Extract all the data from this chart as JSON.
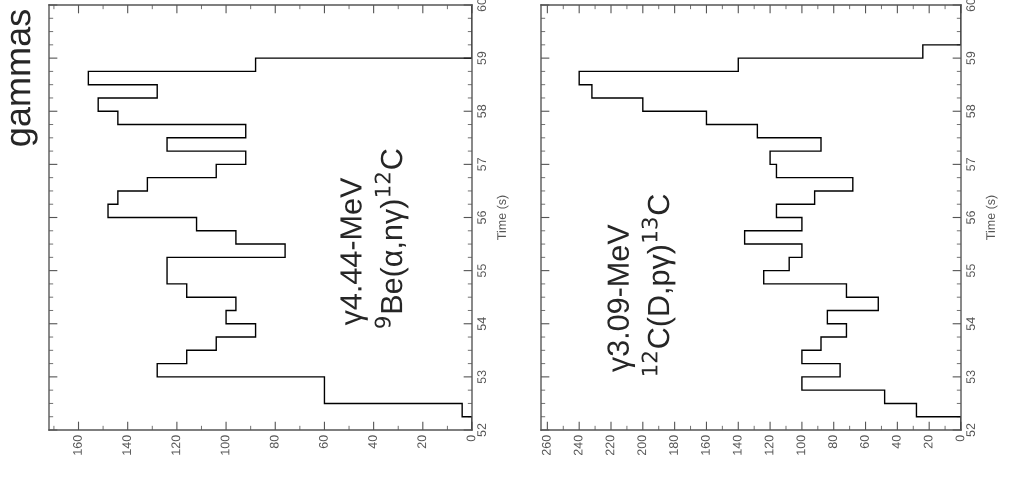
{
  "chart_data": [
    {
      "type": "histogram",
      "orientation": "horizontal",
      "title": "gammas",
      "ylabel": "Time (s)",
      "color": "#000000",
      "bins": [
        52,
        52.25,
        52.5,
        52.75,
        53,
        53.25,
        53.5,
        53.75,
        54,
        54.25,
        54.5,
        54.75,
        55,
        55.25,
        55.5,
        55.75,
        56,
        56.25,
        56.5,
        56.75,
        57,
        57.25,
        57.5,
        57.75,
        58,
        58.25,
        58.5,
        58.75,
        59,
        59.25,
        59.5,
        59.75,
        60
      ],
      "values": [
        0,
        4,
        60,
        60,
        128,
        116,
        104,
        88,
        100,
        96,
        116,
        124,
        124,
        76,
        96,
        112,
        148,
        144,
        132,
        104,
        92,
        124,
        92,
        144,
        152,
        128,
        156,
        88,
        0,
        0,
        0,
        0
      ],
      "xlim": [
        172,
        0
      ],
      "xticks": [
        0,
        20,
        40,
        60,
        80,
        100,
        120,
        140,
        160
      ],
      "ylim": [
        52,
        60
      ],
      "yticks": [
        52,
        53,
        54,
        55,
        56,
        57,
        58,
        59,
        60
      ],
      "annotations": [
        "γ4.44-MeV",
        "$^{9}$Be(α,nγ)$^{12}$C"
      ]
    },
    {
      "type": "histogram",
      "orientation": "horizontal",
      "ylabel": "Time (s)",
      "color": "#000000",
      "bins": [
        52,
        52.25,
        52.5,
        52.75,
        53,
        53.25,
        53.5,
        53.75,
        54,
        54.25,
        54.5,
        54.75,
        55,
        55.25,
        55.5,
        55.75,
        56,
        56.25,
        56.5,
        56.75,
        57,
        57.25,
        57.5,
        57.75,
        58,
        58.25,
        58.5,
        58.75,
        59,
        59.25,
        59.5,
        59.75,
        60
      ],
      "values": [
        0,
        28,
        48,
        100,
        76,
        100,
        88,
        72,
        84,
        52,
        72,
        124,
        108,
        100,
        136,
        100,
        116,
        92,
        68,
        116,
        120,
        88,
        128,
        160,
        200,
        232,
        240,
        140,
        24,
        0,
        0,
        0
      ],
      "xlim": [
        264,
        0
      ],
      "xticks": [
        0,
        20,
        40,
        60,
        80,
        100,
        120,
        140,
        160,
        180,
        200,
        220,
        240,
        260
      ],
      "ylim": [
        52,
        60
      ],
      "yticks": [
        52,
        53,
        54,
        55,
        56,
        57,
        58,
        59,
        60
      ],
      "annotations": [
        "γ3.09-MeV",
        "$^{12}$C(D,pγ)$^{13}$C"
      ]
    }
  ]
}
